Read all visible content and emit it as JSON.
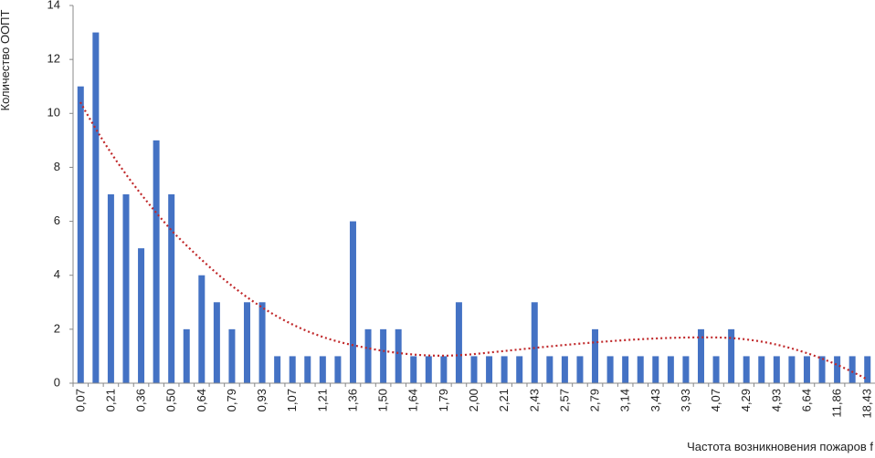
{
  "chart_data": {
    "type": "bar",
    "x_label": "Частота возникновения пожаров f",
    "y_label": "Количество ООПТ",
    "color": "#4472c4",
    "categories": [
      "0,07",
      null,
      "0,21",
      null,
      "0,36",
      null,
      "0,50",
      null,
      "0,64",
      null,
      "0,79",
      null,
      "0,93",
      null,
      "1,07",
      null,
      "1,21",
      null,
      "1,36",
      null,
      "1,50",
      null,
      "1,64",
      null,
      "1,79",
      null,
      "2,00",
      null,
      "2,21",
      null,
      "2,43",
      null,
      "2,57",
      null,
      "2,79",
      null,
      "3,14",
      null,
      "3,43",
      null,
      "3,93",
      null,
      "4,07",
      null,
      "4,29",
      null,
      "4,93",
      null,
      "6,64",
      null,
      "11,86",
      null,
      "18,43"
    ],
    "values": [
      11,
      13,
      7,
      7,
      5,
      9,
      7,
      2,
      4,
      3,
      2,
      3,
      3,
      1,
      1,
      1,
      1,
      1,
      6,
      2,
      2,
      2,
      1,
      1,
      1,
      3,
      1,
      1,
      1,
      1,
      3,
      1,
      1,
      1,
      2,
      1,
      1,
      1,
      1,
      1,
      1,
      2,
      1,
      2,
      1,
      1,
      1,
      1,
      1,
      1,
      1,
      1,
      1
    ],
    "ylim": [
      0,
      14
    ],
    "yticks": [
      0,
      2,
      4,
      6,
      8,
      10,
      12,
      14
    ],
    "grid": false
  }
}
